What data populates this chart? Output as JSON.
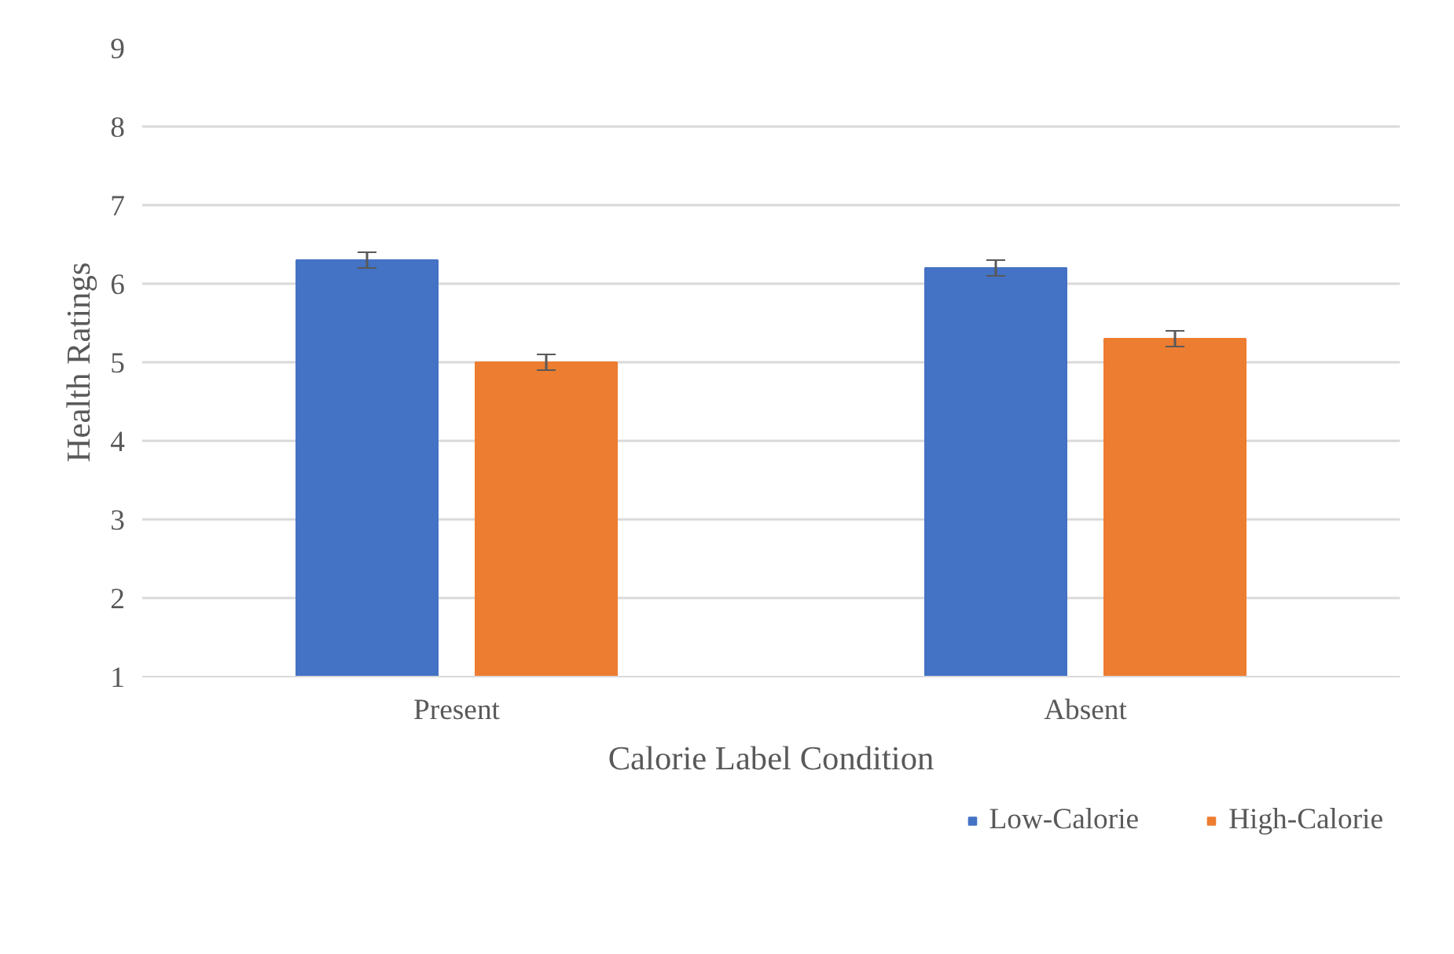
{
  "chart_data": {
    "type": "bar",
    "xlabel": "Calorie Label Condition",
    "ylabel": "Health Ratings",
    "categories": [
      "Present",
      "Absent"
    ],
    "series": [
      {
        "name": "Low-Calorie",
        "color": "#4472c4",
        "values": [
          6.3,
          6.2
        ],
        "errors": [
          0.1,
          0.1
        ]
      },
      {
        "name": "High-Calorie",
        "color": "#ed7d31",
        "values": [
          5.0,
          5.3
        ],
        "errors": [
          0.1,
          0.1
        ]
      }
    ],
    "ylim": [
      1,
      9
    ],
    "yticks": [
      1,
      2,
      3,
      4,
      5,
      6,
      7,
      8,
      9
    ],
    "grid": "y",
    "legend": "bottom right"
  }
}
